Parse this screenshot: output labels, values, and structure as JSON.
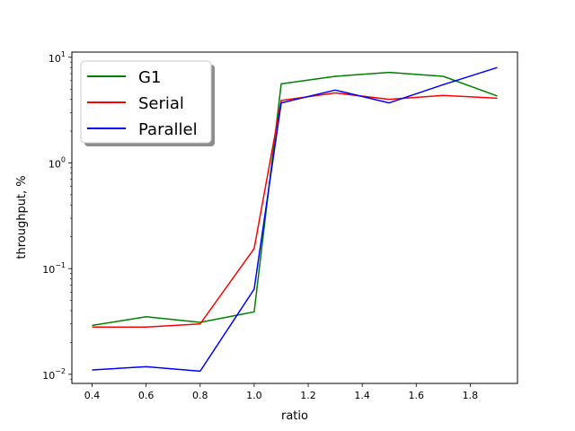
{
  "chart_data": {
    "type": "line",
    "title": "",
    "xlabel": "ratio",
    "ylabel": "throughput, %",
    "xlim": [
      0.325,
      1.975
    ],
    "ylim": [
      0.0082,
      11.2
    ],
    "yscale": "log",
    "grid": false,
    "legend_position": "top-left",
    "x_ticks": [
      0.4,
      0.6,
      0.8,
      1.0,
      1.2,
      1.4,
      1.6,
      1.8
    ],
    "x_tick_labels": [
      "0.4",
      "0.6",
      "0.8",
      "1.0",
      "1.2",
      "1.4",
      "1.6",
      "1.8"
    ],
    "y_ticks": [
      {
        "value": 0.01,
        "base": "10",
        "exp": "−2"
      },
      {
        "value": 0.1,
        "base": "10",
        "exp": "−1"
      },
      {
        "value": 1,
        "base": "10",
        "exp": "0"
      },
      {
        "value": 10,
        "base": "10",
        "exp": "1"
      }
    ],
    "x": [
      0.4,
      0.6,
      0.8,
      1.0,
      1.1,
      1.3,
      1.5,
      1.7,
      1.9
    ],
    "series": [
      {
        "name": "G1",
        "color": "#008000",
        "values": [
          0.029,
          0.035,
          0.031,
          0.039,
          5.6,
          6.6,
          7.2,
          6.6,
          4.3
        ]
      },
      {
        "name": "Serial",
        "color": "#ff0000",
        "values": [
          0.028,
          0.028,
          0.03,
          0.155,
          3.9,
          4.6,
          4.0,
          4.35,
          4.1
        ]
      },
      {
        "name": "Parallel",
        "color": "#0000ff",
        "values": [
          0.011,
          0.0118,
          0.0107,
          0.064,
          3.7,
          4.9,
          3.7,
          5.5,
          8.0
        ]
      }
    ]
  }
}
